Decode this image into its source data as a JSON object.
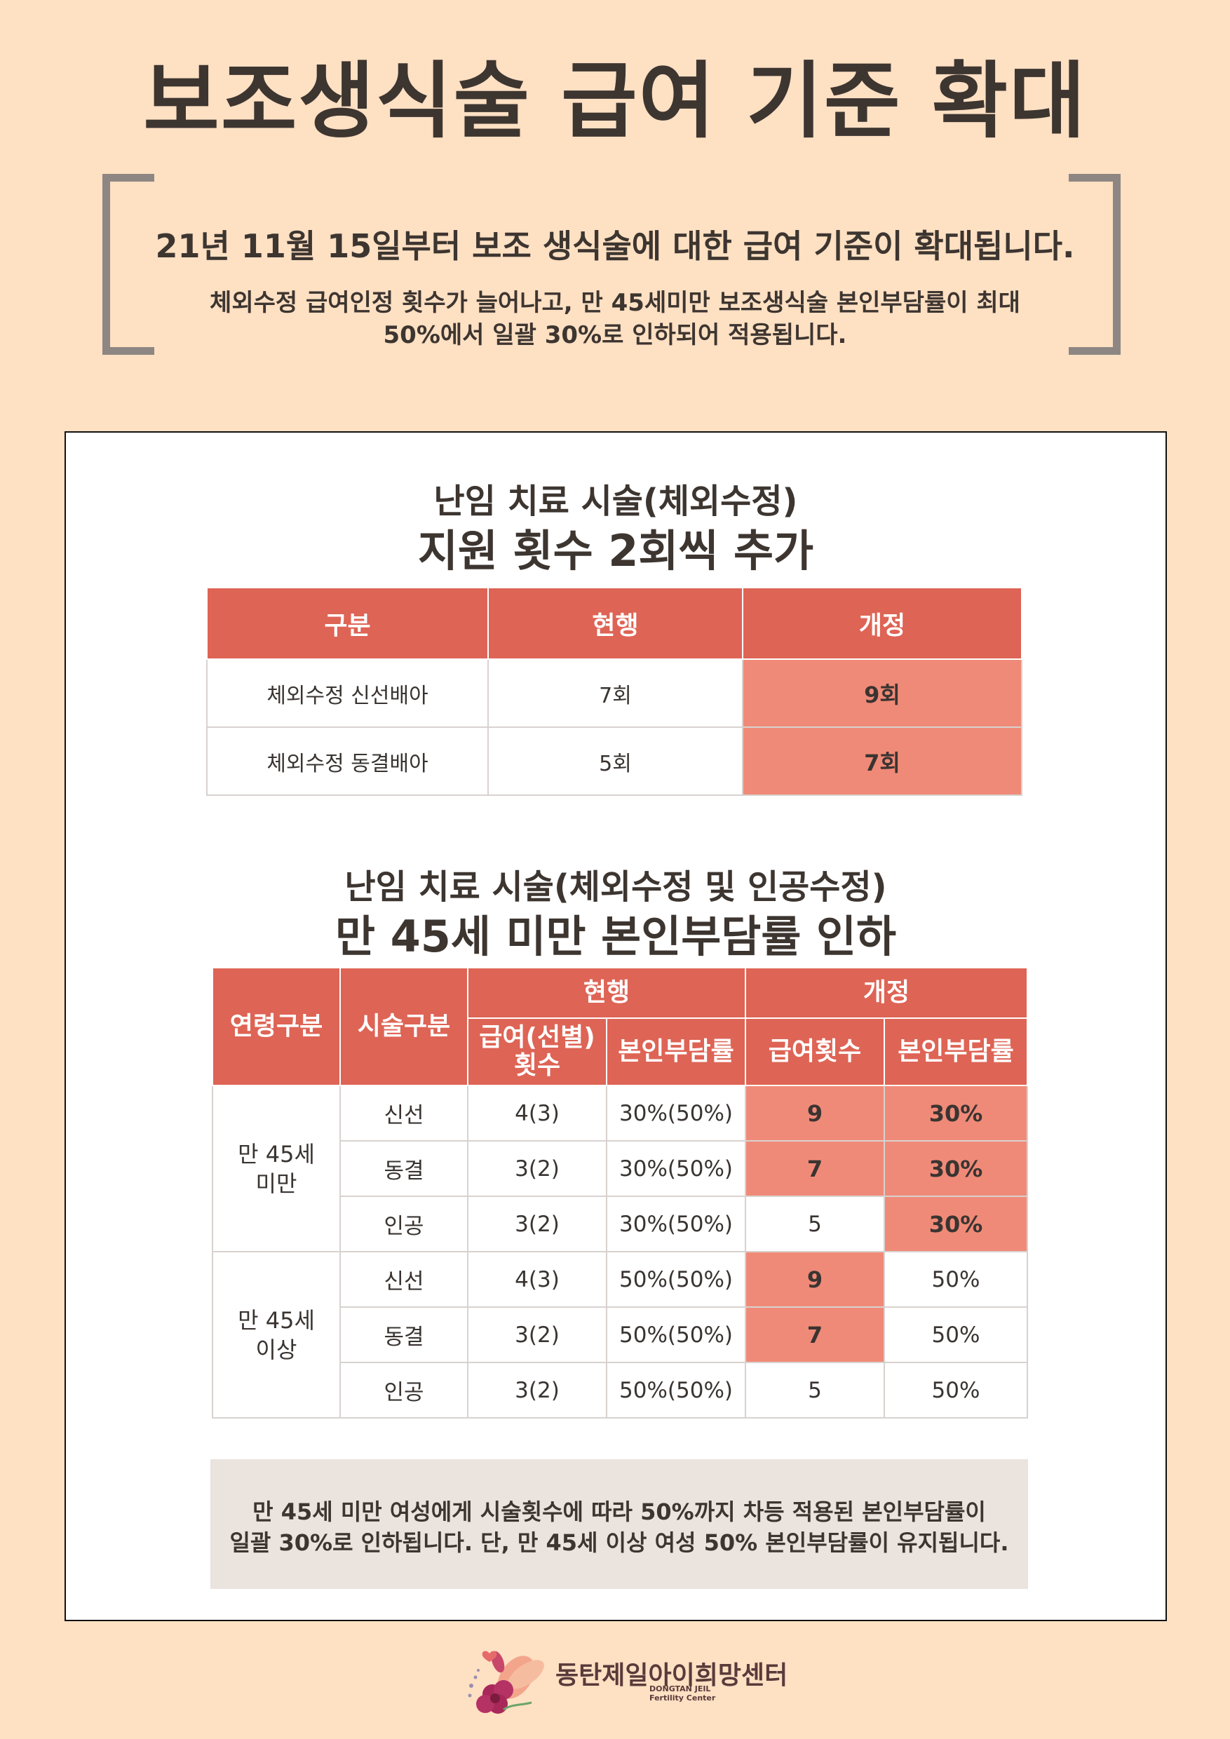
{
  "title": "보조생식술 급여 기준 확대",
  "intro": {
    "line1": "21년 11월 15일부터 보조 생식술에 대한 급여 기준이 확대됩니다.",
    "line2": "체외수정 급여인정 횟수가 늘어나고, 만 45세미만 보조생식술 본인부담률이 최대",
    "line3": "50%에서 일괄 30%로 인하되어 적용됩니다."
  },
  "section1": {
    "subtitle": "난임 치료 시술(체외수정)",
    "heading": "지원 횟수 2회씩 추가",
    "headers": [
      "구분",
      "현행",
      "개정"
    ],
    "rows": [
      {
        "label": "체외수정 신선배아",
        "current": "7회",
        "revised": "9회"
      },
      {
        "label": "체외수정 동결배아",
        "current": "5회",
        "revised": "7회"
      }
    ]
  },
  "section2": {
    "subtitle": "난임 치료 시술(체외수정 및 인공수정)",
    "heading": "만 45세 미만 본인부담률 인하",
    "headers": {
      "age": "연령구분",
      "procedure": "시술구분",
      "current": "현행",
      "revised": "개정",
      "current_count": "급여(선별) 횟수",
      "current_rate": "본인부담률",
      "revised_count": "급여횟수",
      "revised_rate": "본인부담률"
    },
    "groups": [
      {
        "age": "만 45세 미만",
        "rows": [
          {
            "procedure": "신선",
            "count": "4(3)",
            "rate": "30%(50%)",
            "new_count": "9",
            "new_rate": "30%"
          },
          {
            "procedure": "동결",
            "count": "3(2)",
            "rate": "30%(50%)",
            "new_count": "7",
            "new_rate": "30%"
          },
          {
            "procedure": "인공",
            "count": "3(2)",
            "rate": "30%(50%)",
            "new_count": "5",
            "new_rate": "30%"
          }
        ]
      },
      {
        "age": "만 45세 이상",
        "rows": [
          {
            "procedure": "신선",
            "count": "4(3)",
            "rate": "50%(50%)",
            "new_count": "9",
            "new_rate": "50%"
          },
          {
            "procedure": "동결",
            "count": "3(2)",
            "rate": "50%(50%)",
            "new_count": "7",
            "new_rate": "50%"
          },
          {
            "procedure": "인공",
            "count": "3(2)",
            "rate": "50%(50%)",
            "new_count": "5",
            "new_rate": "50%"
          }
        ]
      }
    ]
  },
  "note": {
    "line1": "만 45세 미만 여성에게 시술횟수에 따라 50%까지 차등 적용된 본인부담률이",
    "line2": "일괄 30%로 인하됩니다. 단, 만 45세 이상 여성 50% 본인부담률이 유지됩니다."
  },
  "logo": {
    "name": "동탄제일아이희망센터",
    "sub1": "DONGTAN JEIL",
    "sub2": "Fertility Center"
  },
  "colors": {
    "background": "#FEE0C3",
    "header_red": "#DE6455",
    "highlight_salmon": "#F08A78",
    "note_gray": "#EAE3DE"
  }
}
